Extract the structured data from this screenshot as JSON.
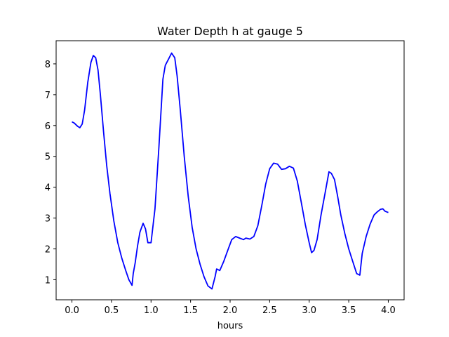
{
  "chart_data": {
    "type": "line",
    "title": "Water Depth h at gauge 5",
    "xlabel": "hours",
    "ylabel": "",
    "xlim": [
      -0.2,
      4.2
    ],
    "ylim": [
      0.35,
      8.75
    ],
    "grid": false,
    "xticks": [
      0.0,
      0.5,
      1.0,
      1.5,
      2.0,
      2.5,
      3.0,
      3.5,
      4.0
    ],
    "xtick_labels": [
      "0.0",
      "0.5",
      "1.0",
      "1.5",
      "2.0",
      "2.5",
      "3.0",
      "3.5",
      "4.0"
    ],
    "yticks": [
      1,
      2,
      3,
      4,
      5,
      6,
      7,
      8
    ],
    "ytick_labels": [
      "1",
      "2",
      "3",
      "4",
      "5",
      "6",
      "7",
      "8"
    ],
    "series": [
      {
        "color": "#0000ff",
        "x": [
          0.0,
          0.03,
          0.07,
          0.1,
          0.13,
          0.16,
          0.2,
          0.24,
          0.27,
          0.3,
          0.33,
          0.36,
          0.4,
          0.44,
          0.48,
          0.53,
          0.58,
          0.63,
          0.68,
          0.72,
          0.76,
          0.775,
          0.8,
          0.83,
          0.86,
          0.9,
          0.93,
          0.96,
          1.0,
          1.05,
          1.1,
          1.15,
          1.18,
          1.22,
          1.26,
          1.3,
          1.33,
          1.37,
          1.42,
          1.47,
          1.52,
          1.57,
          1.62,
          1.67,
          1.72,
          1.77,
          1.81,
          1.83,
          1.87,
          1.92,
          1.97,
          2.02,
          2.07,
          2.12,
          2.17,
          2.2,
          2.25,
          2.3,
          2.35,
          2.4,
          2.45,
          2.5,
          2.55,
          2.6,
          2.65,
          2.7,
          2.75,
          2.8,
          2.85,
          2.9,
          2.95,
          3.0,
          3.03,
          3.06,
          3.1,
          3.15,
          3.2,
          3.25,
          3.28,
          3.32,
          3.36,
          3.4,
          3.45,
          3.5,
          3.55,
          3.6,
          3.64,
          3.67,
          3.72,
          3.77,
          3.82,
          3.86,
          3.9,
          3.93,
          3.96,
          4.0
        ],
        "y": [
          6.12,
          6.08,
          5.98,
          5.93,
          6.05,
          6.5,
          7.4,
          8.05,
          8.27,
          8.2,
          7.8,
          7.0,
          5.8,
          4.7,
          3.8,
          2.9,
          2.2,
          1.7,
          1.3,
          1.0,
          0.82,
          1.2,
          1.55,
          2.1,
          2.55,
          2.83,
          2.65,
          2.2,
          2.2,
          3.3,
          5.3,
          7.5,
          7.95,
          8.15,
          8.35,
          8.2,
          7.6,
          6.5,
          5.0,
          3.7,
          2.7,
          2.0,
          1.5,
          1.1,
          0.8,
          0.7,
          1.1,
          1.35,
          1.3,
          1.6,
          1.95,
          2.3,
          2.4,
          2.35,
          2.3,
          2.35,
          2.32,
          2.4,
          2.75,
          3.4,
          4.1,
          4.6,
          4.78,
          4.75,
          4.58,
          4.6,
          4.68,
          4.62,
          4.2,
          3.5,
          2.8,
          2.2,
          1.88,
          1.95,
          2.3,
          3.1,
          3.8,
          4.5,
          4.45,
          4.25,
          3.7,
          3.1,
          2.5,
          2.0,
          1.6,
          1.2,
          1.15,
          1.85,
          2.4,
          2.8,
          3.1,
          3.2,
          3.28,
          3.3,
          3.22,
          3.18
        ]
      }
    ]
  }
}
